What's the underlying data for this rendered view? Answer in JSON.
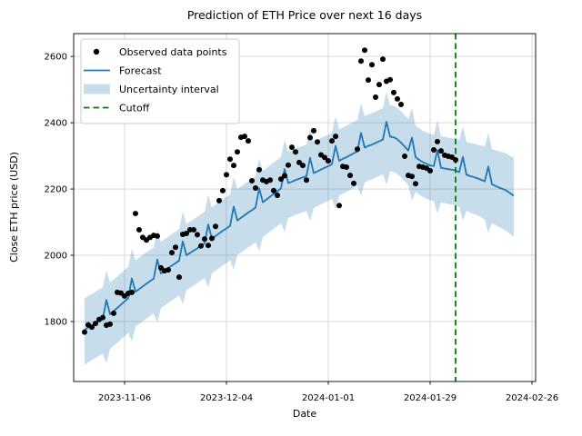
{
  "title": "Prediction of ETH Price over next 16 days",
  "axes": {
    "xlabel": "Date",
    "ylabel": "Close ETH price (USD)",
    "x_ticks": [
      {
        "label": "2023-11-06",
        "day": 11
      },
      {
        "label": "2023-12-04",
        "day": 39
      },
      {
        "label": "2024-01-01",
        "day": 67
      },
      {
        "label": "2024-01-29",
        "day": 95
      },
      {
        "label": "2024-02-26",
        "day": 123
      }
    ],
    "y_ticks": [
      1800,
      2000,
      2200,
      2400,
      2600
    ],
    "x_range_days": [
      -3,
      124
    ],
    "y_range": [
      1619,
      2669
    ]
  },
  "legend": {
    "position": "upper left",
    "items": [
      {
        "label": "Observed data points",
        "type": "marker"
      },
      {
        "label": "Forecast",
        "type": "line"
      },
      {
        "label": "Uncertainty interval",
        "type": "patch"
      },
      {
        "label": "Cutoff",
        "type": "dashed"
      }
    ]
  },
  "colors": {
    "forecast": "#1f77b4",
    "band": "#1f77b4",
    "band_opacity": 0.25,
    "cutoff": "#008000",
    "observed": "#000000",
    "grid": "#d9d9d9",
    "spine": "#000000",
    "legend_border": "#cccccc"
  },
  "chart_data": {
    "type": "line",
    "title": "Prediction of ETH Price over next 16 days",
    "xlabel": "Date",
    "ylabel": "Close ETH price (USD)",
    "grid": true,
    "legend_position": "upper left",
    "start_date": "2023-10-26",
    "cutoff_date": "2024-02-05",
    "cutoff_day": 102,
    "observed": [
      1768,
      1790,
      1783,
      1794,
      1806,
      1812,
      1789,
      1792,
      1825,
      1888,
      1886,
      1877,
      1885,
      1888,
      2126,
      2077,
      2054,
      2046,
      2054,
      2060,
      2058,
      1962,
      1953,
      1956,
      2008,
      2024,
      1934,
      2063,
      2066,
      2077,
      2077,
      2062,
      2028,
      2049,
      2030,
      2051,
      2087,
      2165,
      2195,
      2243,
      2290,
      2271,
      2312,
      2356,
      2359,
      2345,
      2225,
      2203,
      2258,
      2227,
      2222,
      2227,
      2195,
      2181,
      2230,
      2240,
      2272,
      2326,
      2312,
      2280,
      2271,
      2227,
      2355,
      2376,
      2342,
      2303,
      2295,
      2285,
      2345,
      2359,
      2150,
      2268,
      2266,
      2241,
      2217,
      2320,
      2586,
      2619,
      2529,
      2575,
      2477,
      2515,
      2592,
      2525,
      2530,
      2491,
      2472,
      2455,
      2299,
      2241,
      2238,
      2216,
      2268,
      2266,
      2263,
      2255,
      2318,
      2343,
      2315,
      2302,
      2299,
      2296,
      2288
    ],
    "forecast": [
      1775,
      1782,
      1788,
      1795,
      1802,
      1808,
      1865,
      1822,
      1832,
      1841,
      1851,
      1861,
      1870,
      1930,
      1890,
      1898,
      1906,
      1914,
      1922,
      1929,
      1987,
      1945,
      1953,
      1961,
      1969,
      1976,
      1984,
      2042,
      2000,
      2007,
      2014,
      2021,
      2029,
      2036,
      2093,
      2050,
      2058,
      2066,
      2074,
      2081,
      2089,
      2147,
      2105,
      2113,
      2121,
      2129,
      2136,
      2144,
      2202,
      2160,
      2168,
      2177,
      2185,
      2193,
      2202,
      2260,
      2218,
      2222,
      2227,
      2231,
      2235,
      2239,
      2294,
      2248,
      2253,
      2259,
      2264,
      2269,
      2275,
      2330,
      2285,
      2291,
      2296,
      2302,
      2308,
      2313,
      2369,
      2325,
      2330,
      2334,
      2339,
      2344,
      2349,
      2403,
      2358,
      2356,
      2350,
      2340,
      2328,
      2316,
      2355,
      2296,
      2288,
      2281,
      2276,
      2271,
      2269,
      2317,
      2264,
      2262,
      2260,
      2258,
      2256,
      2251,
      2297,
      2243,
      2239,
      2236,
      2232,
      2228,
      2223,
      2268,
      2214,
      2209,
      2204,
      2200,
      2195,
      2187,
      2180
    ],
    "upper": [
      1870,
      1877,
      1883,
      1890,
      1897,
      1903,
      1955,
      1917,
      1927,
      1936,
      1946,
      1956,
      1965,
      2020,
      1985,
      1993,
      2001,
      2009,
      2017,
      2024,
      2077,
      2040,
      2048,
      2056,
      2064,
      2071,
      2079,
      2132,
      2095,
      2102,
      2109,
      2116,
      2124,
      2131,
      2183,
      2145,
      2153,
      2161,
      2169,
      2176,
      2184,
      2237,
      2200,
      2208,
      2216,
      2224,
      2231,
      2239,
      2292,
      2255,
      2263,
      2272,
      2280,
      2288,
      2297,
      2350,
      2313,
      2317,
      2322,
      2326,
      2330,
      2334,
      2384,
      2343,
      2348,
      2354,
      2359,
      2364,
      2370,
      2420,
      2380,
      2386,
      2391,
      2397,
      2403,
      2408,
      2459,
      2420,
      2425,
      2429,
      2434,
      2439,
      2444,
      2493,
      2453,
      2451,
      2445,
      2435,
      2423,
      2411,
      2445,
      2391,
      2383,
      2376,
      2371,
      2366,
      2364,
      2407,
      2359,
      2357,
      2355,
      2353,
      2351,
      2347,
      2389,
      2342,
      2339,
      2337,
      2334,
      2331,
      2328,
      2369,
      2321,
      2317,
      2313,
      2311,
      2307,
      2300,
      2294
    ],
    "lower": [
      1670,
      1677,
      1683,
      1690,
      1697,
      1703,
      1675,
      1717,
      1727,
      1736,
      1746,
      1756,
      1765,
      1740,
      1785,
      1793,
      1801,
      1809,
      1817,
      1824,
      1797,
      1840,
      1848,
      1856,
      1864,
      1871,
      1879,
      1852,
      1895,
      1902,
      1909,
      1916,
      1924,
      1931,
      1903,
      1945,
      1953,
      1961,
      1969,
      1976,
      1984,
      1957,
      2000,
      2008,
      2016,
      2024,
      2031,
      2039,
      2012,
      2055,
      2063,
      2072,
      2080,
      2088,
      2097,
      2070,
      2113,
      2117,
      2122,
      2126,
      2130,
      2134,
      2104,
      2143,
      2148,
      2154,
      2159,
      2164,
      2170,
      2140,
      2180,
      2186,
      2191,
      2197,
      2203,
      2208,
      2179,
      2220,
      2225,
      2229,
      2234,
      2239,
      2244,
      2213,
      2253,
      2251,
      2245,
      2235,
      2223,
      2211,
      2165,
      2191,
      2183,
      2176,
      2171,
      2166,
      2164,
      2127,
      2159,
      2157,
      2155,
      2153,
      2151,
      2145,
      2105,
      2134,
      2129,
      2125,
      2120,
      2115,
      2108,
      2067,
      2097,
      2091,
      2085,
      2079,
      2073,
      2064,
      2056
    ]
  }
}
